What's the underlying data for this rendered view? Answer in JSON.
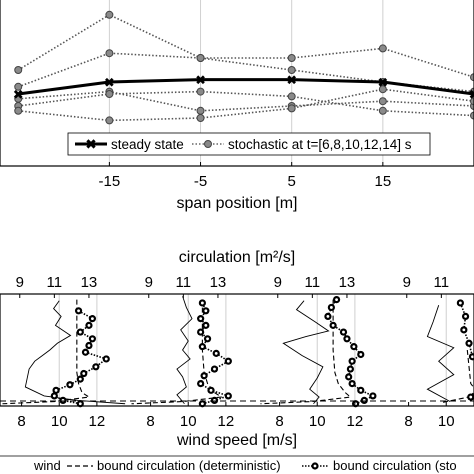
{
  "chart_data": [
    {
      "type": "line",
      "xlabel": "span position [m]",
      "x_ticks": [
        -15,
        -5,
        5,
        15
      ],
      "xlim": [
        -27,
        25
      ],
      "ylim": [
        0.65,
        1.35
      ],
      "grid": "vertical",
      "legend_placement": "bottom-center",
      "x": [
        -25,
        -15,
        -5,
        5,
        15,
        25
      ],
      "series": [
        {
          "name": "steady state",
          "style": "solid-thick",
          "color": "#000000",
          "values": [
            0.95,
            1.0,
            1.01,
            1.01,
            1.0,
            0.95
          ]
        },
        {
          "name": "stochastic at t=[6,8,10,12,14] s",
          "style": "dotted",
          "color": "#555555",
          "values": [
            1.05,
            1.28,
            1.1,
            1.1,
            1.14,
            1.02
          ]
        },
        {
          "name": "",
          "style": "dotted",
          "color": "#555555",
          "values": [
            0.98,
            1.12,
            1.1,
            1.05,
            1.0,
            0.96
          ]
        },
        {
          "name": "",
          "style": "dotted",
          "color": "#555555",
          "values": [
            0.93,
            0.96,
            0.88,
            0.9,
            0.92,
            0.9
          ]
        },
        {
          "name": "",
          "style": "dotted",
          "color": "#555555",
          "values": [
            0.9,
            0.95,
            0.96,
            0.94,
            0.88,
            0.86
          ]
        },
        {
          "name": "",
          "style": "dotted",
          "color": "#555555",
          "values": [
            0.88,
            0.84,
            0.85,
            0.89,
            0.97,
            0.92
          ]
        }
      ]
    },
    {
      "type": "line",
      "title": "circulation [m²/s]",
      "xlabel": "wind speed [m/s]",
      "bottom_ticks": [
        "8",
        "10",
        "12"
      ],
      "top_ticks": [
        "9",
        "11",
        "13"
      ],
      "wind_xlim": [
        6.8,
        13.6
      ],
      "circ_xlim": [
        7.8,
        15.2
      ],
      "ylim": [
        0,
        1
      ],
      "legend_placement": "bottom",
      "legend": {
        "wind": "wind",
        "deterministic": "bound circulation (deterministic)",
        "stochastic": "bound circulation (sto"
      },
      "panels": [
        {
          "wind": {
            "x": [
              10.0,
              9.7,
              10.1,
              9.8,
              10.6,
              9.9,
              9.5,
              9.1,
              8.7,
              8.4,
              8.2,
              9.2,
              11.0,
              13.5
            ],
            "y": [
              0.94,
              0.87,
              0.8,
              0.72,
              0.63,
              0.56,
              0.5,
              0.45,
              0.4,
              0.33,
              0.17,
              0.09,
              0.05,
              0.02
            ]
          },
          "bound_deterministic": {
            "x": [
              12.3,
              12.3,
              12.3,
              12.3,
              12.4,
              12.6,
              13.0,
              11.0,
              8.0
            ],
            "y": [
              0.95,
              0.7,
              0.5,
              0.3,
              0.2,
              0.12,
              0.08,
              0.04,
              0.02
            ]
          },
          "bound_stochastic": {
            "x": [
              12.4,
              13.2,
              13.0,
              12.5,
              13.2,
              13.0,
              12.8,
              14.0,
              13.4,
              12.7,
              12.5,
              11.9,
              11.1,
              11.0,
              11.5,
              12.5
            ],
            "y": [
              0.85,
              0.78,
              0.72,
              0.66,
              0.6,
              0.54,
              0.48,
              0.42,
              0.35,
              0.29,
              0.24,
              0.19,
              0.14,
              0.09,
              0.05,
              0.02
            ]
          }
        },
        {
          "wind": {
            "x": [
              9.7,
              9.9,
              10.2,
              9.6,
              10.0,
              9.7,
              10.1,
              9.4,
              9.7,
              9.9,
              9.4,
              9.8
            ],
            "y": [
              0.98,
              0.88,
              0.78,
              0.68,
              0.58,
              0.5,
              0.42,
              0.33,
              0.26,
              0.17,
              0.1,
              0.02
            ]
          },
          "bound_deterministic": {
            "x": [
              12.1,
              12.1,
              12.1,
              12.2,
              12.4,
              12.8,
              13.2,
              11.0,
              8.0
            ],
            "y": [
              0.95,
              0.7,
              0.5,
              0.3,
              0.2,
              0.12,
              0.08,
              0.04,
              0.02
            ]
          },
          "bound_stochastic": {
            "x": [
              12.1,
              12.3,
              12.0,
              12.3,
              12.0,
              12.4,
              12.1,
              12.9,
              13.6,
              12.8,
              12.2,
              12.0,
              12.6,
              13.6,
              12.8,
              12.1
            ],
            "y": [
              0.92,
              0.85,
              0.78,
              0.72,
              0.66,
              0.6,
              0.53,
              0.47,
              0.4,
              0.33,
              0.27,
              0.2,
              0.14,
              0.09,
              0.05,
              0.02
            ]
          }
        },
        {
          "wind": {
            "x": [
              9.3,
              8.9,
              9.9,
              10.6,
              9.4,
              8.2,
              9.2,
              10.3,
              10.0,
              9.6,
              10.1,
              9.8
            ],
            "y": [
              0.94,
              0.86,
              0.75,
              0.67,
              0.62,
              0.56,
              0.45,
              0.35,
              0.25,
              0.15,
              0.08,
              0.02
            ]
          },
          "bound_deterministic": {
            "x": [
              12.2,
              12.2,
              12.2,
              12.3,
              12.5,
              12.9,
              13.2,
              11.0,
              8.0
            ],
            "y": [
              0.95,
              0.7,
              0.5,
              0.3,
              0.2,
              0.12,
              0.08,
              0.04,
              0.02
            ]
          },
          "bound_stochastic": {
            "x": [
              12.4,
              12.1,
              11.9,
              12.2,
              12.8,
              13.0,
              13.4,
              13.8,
              13.3,
              13.2,
              13.1,
              13.3,
              13.8,
              14.5,
              14.0,
              13.5
            ],
            "y": [
              0.95,
              0.88,
              0.8,
              0.72,
              0.66,
              0.6,
              0.53,
              0.46,
              0.4,
              0.33,
              0.26,
              0.2,
              0.14,
              0.09,
              0.05,
              0.02
            ]
          }
        },
        {
          "wind": {
            "x": [
              9.6,
              9.3,
              9.0,
              10.4,
              9.6,
              10.4,
              9.0,
              10.2
            ],
            "y": [
              0.9,
              0.75,
              0.62,
              0.52,
              0.4,
              0.28,
              0.15,
              0.04
            ]
          },
          "bound_deterministic": {
            "x": [
              12.5,
              12.7,
              13.2,
              11.0
            ],
            "y": [
              0.5,
              0.2,
              0.1,
              0.03
            ]
          },
          "bound_stochastic": {
            "x": [
              12.1,
              12.4,
              12.3,
              12.6,
              12.8,
              13.6,
              13.2,
              12.7
            ],
            "y": [
              0.92,
              0.8,
              0.68,
              0.56,
              0.44,
              0.32,
              0.2,
              0.08
            ]
          }
        }
      ]
    }
  ]
}
